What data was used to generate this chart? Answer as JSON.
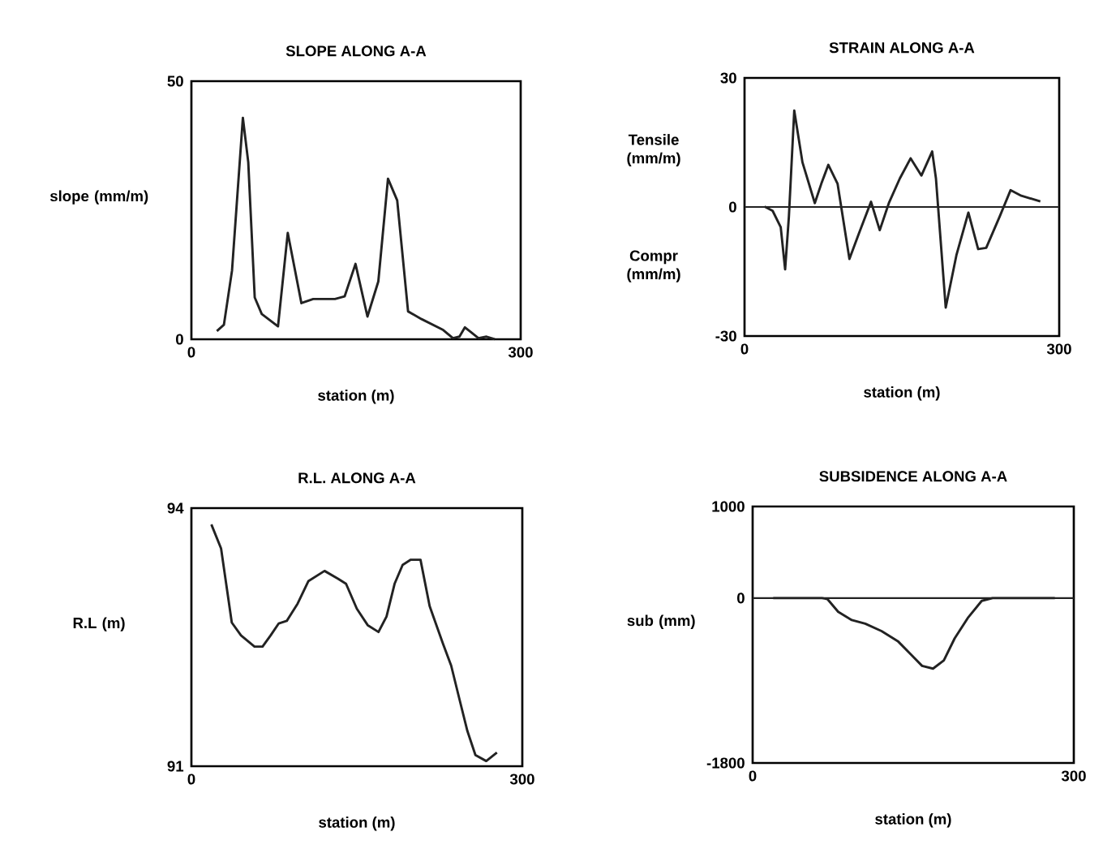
{
  "chart_data": [
    {
      "type": "line",
      "title": "SLOPE ALONG A-A",
      "xlabel": "station (m)",
      "ylabel": "slope (mm/m)",
      "xlim": [
        0,
        300
      ],
      "xticks": [
        0,
        300
      ],
      "ylim": [
        0,
        50
      ],
      "yticks": [
        0,
        50
      ],
      "color": "#222222",
      "x": [
        23.2,
        29.6,
        37,
        46.9,
        51.8,
        57.7,
        64.1,
        78.9,
        87.8,
        100.2,
        111,
        130.8,
        139.6,
        149.5,
        160.4,
        170.3,
        179.1,
        187.5,
        197.4,
        209.7,
        229.4,
        238.3,
        244.2,
        249.2,
        255.1,
        261.5,
        268.9,
        276.3
      ],
      "values": [
        1.6,
        2.8,
        13.3,
        42.9,
        34.3,
        8.1,
        4.9,
        2.5,
        20.6,
        7.0,
        7.8,
        7.8,
        8.3,
        14.6,
        4.4,
        11.2,
        31.1,
        26.9,
        5.4,
        3.9,
        1.8,
        0.2,
        0.5,
        2.3,
        1.3,
        0.2,
        0.5,
        0
      ]
    },
    {
      "type": "line",
      "title": "STRAIN ALONG A-A",
      "xlabel": "station (m)",
      "ylabel": "Tensile (mm/m)",
      "annotations": [
        "Compr (mm/m)"
      ],
      "xlim": [
        0,
        300
      ],
      "xticks": [
        0,
        300
      ],
      "ylim": [
        -30,
        30
      ],
      "yticks": [
        -30,
        0,
        30
      ],
      "color": "#222222",
      "ref_lines": [
        {
          "axis": "y",
          "value": 0,
          "color": "#222222"
        }
      ],
      "x": [
        19.1,
        26.8,
        34.5,
        38.7,
        42.3,
        47.4,
        55.2,
        67,
        73.2,
        79.9,
        88.7,
        100,
        109.3,
        120.6,
        128.9,
        137.6,
        148,
        158.3,
        168.6,
        178.9,
        182.5,
        191.8,
        202.1,
        213.4,
        222.7,
        230.4,
        243.3,
        253.6,
        263.9,
        282
      ],
      "values": [
        0.1,
        -0.9,
        -4.7,
        -14.5,
        -2.2,
        22.4,
        10.4,
        0.9,
        5.4,
        9.8,
        5.4,
        -12.1,
        -6.0,
        1.2,
        -5.4,
        0.9,
        6.6,
        11.3,
        7.3,
        12.9,
        6.6,
        -23.4,
        -11.1,
        -1.3,
        -9.8,
        -9.5,
        -2.2,
        3.9,
        2.6,
        1.3
      ]
    },
    {
      "type": "line",
      "title": "R.L. ALONG A-A",
      "xlabel": "station (m)",
      "ylabel": "R.L (m)",
      "xlim": [
        0,
        300
      ],
      "xticks": [
        0,
        300
      ],
      "ylim": [
        91,
        94
      ],
      "yticks": [
        91,
        94
      ],
      "color": "#222222",
      "x": [
        18.1,
        26.9,
        36.6,
        45,
        57.2,
        64.5,
        71.8,
        79.2,
        86.5,
        96.3,
        106,
        120.7,
        132.9,
        140.2,
        150,
        159.8,
        169.6,
        176.9,
        184.2,
        191.5,
        198.9,
        207.7,
        216,
        228.2,
        235.5,
        242.8,
        250.2,
        257.5,
        267.3,
        277
      ],
      "values": [
        93.81,
        93.53,
        92.67,
        92.52,
        92.39,
        92.39,
        92.52,
        92.66,
        92.69,
        92.89,
        93.15,
        93.27,
        93.18,
        93.12,
        92.83,
        92.64,
        92.56,
        92.74,
        93.12,
        93.34,
        93.4,
        93.4,
        92.86,
        92.42,
        92.17,
        91.79,
        91.41,
        91.13,
        91.06,
        91.16
      ]
    },
    {
      "type": "line",
      "title": "SUBSIDENCE ALONG A-A",
      "xlabel": "station (m)",
      "ylabel": "sub (mm)",
      "xlim": [
        0,
        300
      ],
      "xticks": [
        0,
        300
      ],
      "ylim": [
        -1800,
        1000
      ],
      "yticks": [
        -1800,
        0,
        1000
      ],
      "color": "#222222",
      "ref_lines": [
        {
          "axis": "y",
          "value": 0,
          "color": "#222222"
        }
      ],
      "x": [
        19.2,
        64.8,
        69.8,
        79.9,
        92.6,
        105.2,
        120.4,
        135.6,
        148.2,
        158.3,
        168.5,
        178.6,
        188.7,
        201.4,
        214,
        224.1,
        282.3
      ],
      "values": [
        0,
        0,
        -10,
        -150,
        -240,
        -280,
        -360,
        -470,
        -620,
        -740,
        -770,
        -680,
        -440,
        -210,
        -30,
        0,
        0
      ]
    }
  ]
}
